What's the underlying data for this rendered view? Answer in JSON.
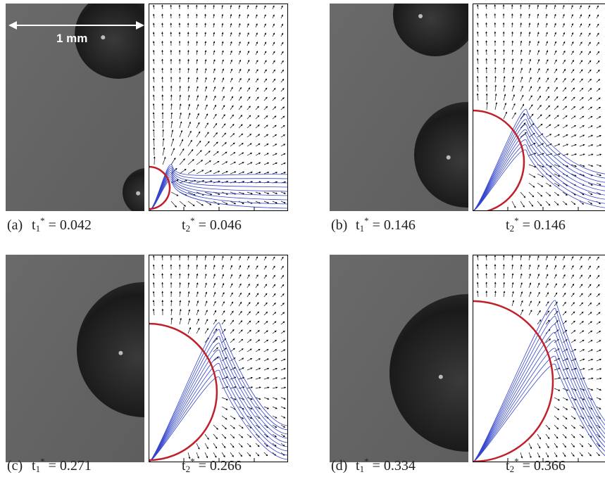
{
  "scale_bar": "1 mm",
  "panels": [
    {
      "label": "(a)",
      "t1": {
        "base": "t",
        "sub": "1",
        "sup": "*",
        "rest": " = 0.042"
      },
      "t2": {
        "base": "t",
        "sub": "2",
        "sup": "*",
        "rest": " = 0.046"
      }
    },
    {
      "label": "(b)",
      "t1": {
        "base": "t",
        "sub": "1",
        "sup": "*",
        "rest": " = 0.146"
      },
      "t2": {
        "base": "t",
        "sub": "2",
        "sup": "*",
        "rest": " = 0.146"
      }
    },
    {
      "label": "(c)",
      "t1": {
        "base": "t",
        "sub": "1",
        "sup": "*",
        "rest": " = 0.271"
      },
      "t2": {
        "base": "t",
        "sub": "2",
        "sup": "*",
        "rest": " = 0.266"
      }
    },
    {
      "label": "(d)",
      "t1": {
        "base": "t",
        "sub": "1",
        "sup": "*",
        "rest": " = 0.334"
      },
      "t2": {
        "base": "t",
        "sub": "2",
        "sup": "*",
        "rest": " = 0.366"
      }
    }
  ]
}
